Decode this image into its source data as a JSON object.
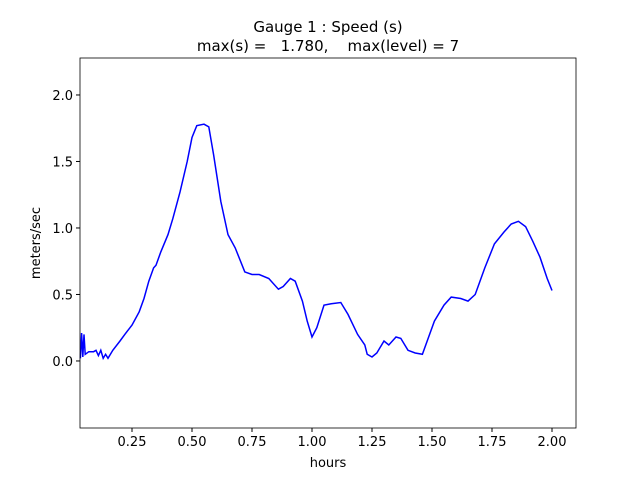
{
  "chart_data": {
    "type": "line",
    "title": "Gauge 1 : Speed (s)",
    "subtitle": "max(s) =   1.780,    max(level) = 7",
    "x_label": "hours",
    "y_label": "meters/sec",
    "xlim": [
      0.0333,
      2.1
    ],
    "ylim": [
      -0.504,
      2.278
    ],
    "xticks": [
      0.25,
      {
        "value": 0.5,
        "label": "0.50"
      },
      0.75,
      {
        "value": 1.0,
        "label": "1.00"
      },
      1.25,
      {
        "value": 1.5,
        "label": "1.50"
      },
      1.75,
      {
        "value": 2.0,
        "label": "2.00"
      }
    ],
    "yticks": [
      {
        "value": 0,
        "label": "0.0"
      },
      {
        "value": 0.5,
        "label": "0.5"
      },
      {
        "value": 1.0,
        "label": "1.0"
      },
      {
        "value": 1.5,
        "label": "1.5"
      },
      {
        "value": 2.0,
        "label": "2.0"
      }
    ],
    "grid": false,
    "series": [
      {
        "name": "s",
        "color": "#0000ff",
        "x": [
          0.035,
          0.04,
          0.045,
          0.05,
          0.055,
          0.07,
          0.09,
          0.1,
          0.11,
          0.12,
          0.13,
          0.14,
          0.15,
          0.17,
          0.2,
          0.22,
          0.25,
          0.28,
          0.3,
          0.32,
          0.34,
          0.35,
          0.37,
          0.4,
          0.42,
          0.45,
          0.48,
          0.5,
          0.52,
          0.55,
          0.57,
          0.59,
          0.62,
          0.65,
          0.68,
          0.72,
          0.75,
          0.78,
          0.82,
          0.86,
          0.88,
          0.91,
          0.93,
          0.96,
          0.98,
          1.0,
          1.02,
          1.05,
          1.08,
          1.12,
          1.15,
          1.19,
          1.22,
          1.23,
          1.25,
          1.27,
          1.3,
          1.32,
          1.35,
          1.37,
          1.4,
          1.43,
          1.46,
          1.48,
          1.51,
          1.55,
          1.58,
          1.62,
          1.65,
          1.68,
          1.72,
          1.76,
          1.8,
          1.83,
          1.86,
          1.89,
          1.92,
          1.95,
          1.98,
          2.0
        ],
        "values": [
          0.02,
          0.21,
          0.03,
          0.2,
          0.05,
          0.07,
          0.07,
          0.08,
          0.04,
          0.08,
          0.02,
          0.05,
          0.02,
          0.08,
          0.15,
          0.2,
          0.27,
          0.37,
          0.47,
          0.6,
          0.7,
          0.72,
          0.82,
          0.95,
          1.07,
          1.27,
          1.5,
          1.68,
          1.77,
          1.78,
          1.76,
          1.55,
          1.2,
          0.95,
          0.85,
          0.67,
          0.65,
          0.65,
          0.62,
          0.54,
          0.56,
          0.62,
          0.6,
          0.45,
          0.3,
          0.18,
          0.25,
          0.42,
          0.43,
          0.44,
          0.35,
          0.2,
          0.12,
          0.05,
          0.03,
          0.06,
          0.15,
          0.12,
          0.18,
          0.17,
          0.08,
          0.06,
          0.05,
          0.15,
          0.3,
          0.42,
          0.48,
          0.47,
          0.45,
          0.5,
          0.7,
          0.88,
          0.97,
          1.03,
          1.05,
          1.01,
          0.9,
          0.78,
          0.62,
          0.53
        ]
      }
    ]
  }
}
